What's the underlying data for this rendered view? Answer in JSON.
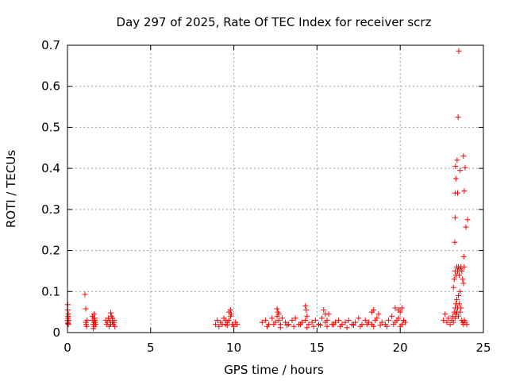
{
  "chart_data": {
    "type": "scatter",
    "title": "Day 297 of 2025, Rate Of TEC Index for receiver scrz",
    "xlabel": "GPS time / hours",
    "ylabel": "ROTI / TECUs",
    "xlim": [
      0,
      25
    ],
    "ylim": [
      0,
      0.7
    ],
    "xticks": [
      "0",
      "5",
      "10",
      "15",
      "20",
      "25"
    ],
    "yticks": [
      "0",
      "0.1",
      "0.2",
      "0.3",
      "0.4",
      "0.5",
      "0.6",
      "0.7"
    ],
    "grid": true,
    "legend": "none",
    "marker": "plus",
    "color": "#ff0000",
    "series": [
      {
        "x": [
          0.02,
          0.02,
          0.03,
          0.03,
          0.03,
          0.04,
          0.04,
          0.05,
          0.05,
          0.06,
          1.05,
          1.1,
          1.1,
          1.12,
          1.15,
          1.18,
          1.5,
          1.52,
          1.55,
          1.58,
          1.6,
          1.62,
          1.65,
          1.68,
          1.7,
          1.55,
          1.6,
          1.65,
          2.3,
          2.35,
          2.4,
          2.45,
          2.5,
          2.55,
          2.6,
          2.65,
          2.7,
          2.75,
          2.8,
          2.85,
          2.6,
          2.7,
          2.8,
          8.9,
          9.0,
          9.1,
          9.2,
          9.3,
          9.4,
          9.5,
          9.6,
          9.7,
          9.8,
          9.9,
          10.0,
          10.1,
          10.2,
          9.7,
          9.8,
          9.85,
          9.5,
          9.6,
          11.7,
          11.9,
          12.1,
          12.3,
          12.5,
          12.6,
          12.7,
          12.8,
          12.9,
          13.1,
          13.3,
          13.5,
          13.7,
          13.9,
          14.1,
          14.3,
          14.4,
          14.5,
          14.7,
          14.9,
          15.1,
          15.3,
          15.5,
          15.6,
          15.7,
          15.9,
          16.1,
          16.3,
          16.5,
          16.7,
          16.9,
          17.1,
          17.3,
          17.5,
          17.7,
          17.9,
          18.1,
          18.3,
          18.5,
          18.6,
          18.7,
          18.9,
          19.1,
          19.3,
          19.5,
          19.7,
          19.8,
          19.9,
          20.0,
          20.1,
          20.2,
          20.3,
          12.0,
          12.4,
          12.8,
          13.2,
          13.6,
          14.0,
          14.4,
          14.8,
          15.2,
          15.6,
          16.0,
          16.4,
          16.8,
          17.2,
          17.6,
          18.0,
          18.4,
          18.8,
          19.2,
          19.6,
          20.0,
          12.6,
          12.65,
          12.7,
          14.3,
          14.35,
          15.4,
          15.5,
          18.3,
          18.4,
          19.7,
          19.9,
          20.1,
          22.6,
          22.7,
          22.8,
          22.9,
          23.0,
          23.1,
          23.15,
          23.2,
          23.25,
          23.3,
          23.3,
          23.35,
          23.35,
          23.4,
          23.4,
          23.45,
          23.5,
          23.5,
          23.55,
          23.6,
          23.6,
          23.65,
          23.7,
          23.75,
          23.8,
          23.85,
          23.9,
          24.0,
          23.2,
          23.25,
          23.3,
          23.35,
          23.4,
          23.45,
          23.5,
          23.55,
          23.6,
          23.65,
          23.7,
          23.75,
          23.8,
          23.28,
          23.3,
          23.3,
          23.35,
          23.32,
          23.42,
          23.45,
          23.48,
          23.52,
          23.6,
          23.8,
          23.85,
          23.9,
          23.95,
          24.05,
          23.82,
          23.85
        ],
        "y": [
          0.068,
          0.055,
          0.04,
          0.03,
          0.022,
          0.025,
          0.035,
          0.02,
          0.045,
          0.03,
          0.093,
          0.058,
          0.025,
          0.02,
          0.015,
          0.03,
          0.04,
          0.03,
          0.02,
          0.035,
          0.025,
          0.015,
          0.03,
          0.025,
          0.02,
          0.01,
          0.045,
          0.035,
          0.03,
          0.02,
          0.025,
          0.035,
          0.015,
          0.03,
          0.02,
          0.04,
          0.025,
          0.02,
          0.03,
          0.015,
          0.048,
          0.035,
          0.025,
          0.02,
          0.03,
          0.015,
          0.025,
          0.02,
          0.035,
          0.02,
          0.025,
          0.03,
          0.04,
          0.02,
          0.015,
          0.025,
          0.02,
          0.05,
          0.055,
          0.045,
          0.03,
          0.018,
          0.025,
          0.03,
          0.02,
          0.035,
          0.025,
          0.04,
          0.03,
          0.02,
          0.035,
          0.025,
          0.02,
          0.03,
          0.035,
          0.02,
          0.025,
          0.03,
          0.04,
          0.02,
          0.025,
          0.03,
          0.02,
          0.035,
          0.025,
          0.03,
          0.045,
          0.02,
          0.025,
          0.03,
          0.02,
          0.025,
          0.03,
          0.02,
          0.025,
          0.035,
          0.02,
          0.03,
          0.025,
          0.02,
          0.03,
          0.035,
          0.045,
          0.025,
          0.02,
          0.03,
          0.04,
          0.025,
          0.03,
          0.035,
          0.05,
          0.02,
          0.03,
          0.025,
          0.015,
          0.02,
          0.012,
          0.018,
          0.015,
          0.02,
          0.012,
          0.015,
          0.018,
          0.015,
          0.02,
          0.015,
          0.012,
          0.018,
          0.015,
          0.02,
          0.015,
          0.018,
          0.015,
          0.02,
          0.015,
          0.058,
          0.05,
          0.045,
          0.065,
          0.055,
          0.055,
          0.045,
          0.05,
          0.055,
          0.06,
          0.055,
          0.06,
          0.03,
          0.045,
          0.025,
          0.035,
          0.02,
          0.03,
          0.04,
          0.025,
          0.05,
          0.035,
          0.06,
          0.045,
          0.07,
          0.08,
          0.05,
          0.06,
          0.09,
          0.04,
          0.07,
          0.05,
          0.1,
          0.06,
          0.03,
          0.025,
          0.02,
          0.03,
          0.025,
          0.02,
          0.11,
          0.13,
          0.15,
          0.14,
          0.16,
          0.15,
          0.16,
          0.14,
          0.155,
          0.16,
          0.15,
          0.13,
          0.12,
          0.22,
          0.28,
          0.34,
          0.375,
          0.405,
          0.42,
          0.34,
          0.525,
          0.686,
          0.395,
          0.43,
          0.345,
          0.402,
          0.257,
          0.275,
          0.185,
          0.16
        ]
      }
    ]
  }
}
